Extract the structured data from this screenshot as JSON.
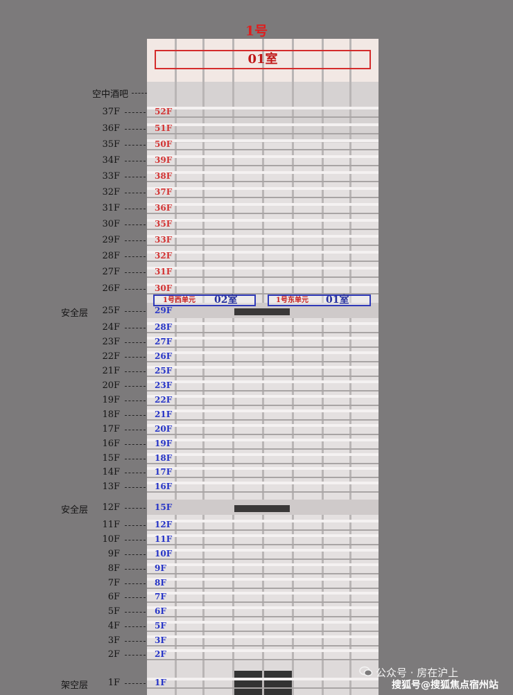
{
  "title": "1号",
  "top_room": "01室",
  "roof_label": "空中酒吧",
  "unit_west": {
    "name": "1号西单元",
    "room": "02室"
  },
  "unit_east": {
    "name": "1号东单元",
    "room": "01室"
  },
  "zones": {
    "safety": "安全层",
    "stilt": "架空层"
  },
  "floors": [
    {
      "f": "37F",
      "a": "52F",
      "c": "red"
    },
    {
      "f": "36F",
      "a": "51F",
      "c": "red"
    },
    {
      "f": "35F",
      "a": "50F",
      "c": "red"
    },
    {
      "f": "34F",
      "a": "39F",
      "c": "red"
    },
    {
      "f": "33F",
      "a": "38F",
      "c": "red"
    },
    {
      "f": "32F",
      "a": "37F",
      "c": "red"
    },
    {
      "f": "31F",
      "a": "36F",
      "c": "red"
    },
    {
      "f": "30F",
      "a": "35F",
      "c": "red"
    },
    {
      "f": "29F",
      "a": "33F",
      "c": "red"
    },
    {
      "f": "28F",
      "a": "32F",
      "c": "red"
    },
    {
      "f": "27F",
      "a": "31F",
      "c": "red"
    },
    {
      "f": "26F",
      "a": "30F",
      "c": "red"
    },
    {
      "f": "25F",
      "a": "29F",
      "c": "blue",
      "zone": "safety"
    },
    {
      "f": "24F",
      "a": "28F",
      "c": "blue"
    },
    {
      "f": "23F",
      "a": "27F",
      "c": "blue"
    },
    {
      "f": "22F",
      "a": "26F",
      "c": "blue"
    },
    {
      "f": "21F",
      "a": "25F",
      "c": "blue"
    },
    {
      "f": "20F",
      "a": "23F",
      "c": "blue"
    },
    {
      "f": "19F",
      "a": "22F",
      "c": "blue"
    },
    {
      "f": "18F",
      "a": "21F",
      "c": "blue"
    },
    {
      "f": "17F",
      "a": "20F",
      "c": "blue"
    },
    {
      "f": "16F",
      "a": "19F",
      "c": "blue"
    },
    {
      "f": "15F",
      "a": "18F",
      "c": "blue"
    },
    {
      "f": "14F",
      "a": "17F",
      "c": "blue"
    },
    {
      "f": "13F",
      "a": "16F",
      "c": "blue"
    },
    {
      "f": "12F",
      "a": "15F",
      "c": "blue",
      "zone": "safety"
    },
    {
      "f": "11F",
      "a": "12F",
      "c": "blue"
    },
    {
      "f": "10F",
      "a": "11F",
      "c": "blue"
    },
    {
      "f": "9F",
      "a": "10F",
      "c": "blue"
    },
    {
      "f": "8F",
      "a": "9F",
      "c": "blue"
    },
    {
      "f": "7F",
      "a": "8F",
      "c": "blue"
    },
    {
      "f": "6F",
      "a": "7F",
      "c": "blue"
    },
    {
      "f": "5F",
      "a": "6F",
      "c": "blue"
    },
    {
      "f": "4F",
      "a": "5F",
      "c": "blue"
    },
    {
      "f": "3F",
      "a": "3F",
      "c": "blue"
    },
    {
      "f": "2F",
      "a": "2F",
      "c": "blue"
    },
    {
      "f": "1F",
      "a": "1F",
      "c": "blue",
      "zone": "stilt"
    }
  ],
  "watermark": {
    "line1": "公众号 · 房在沪上",
    "line2": "搜狐号@搜狐焦点宿州站"
  },
  "colors": {
    "red": "#d33333",
    "blue": "#2533c7",
    "background": "#7c7a7b"
  }
}
